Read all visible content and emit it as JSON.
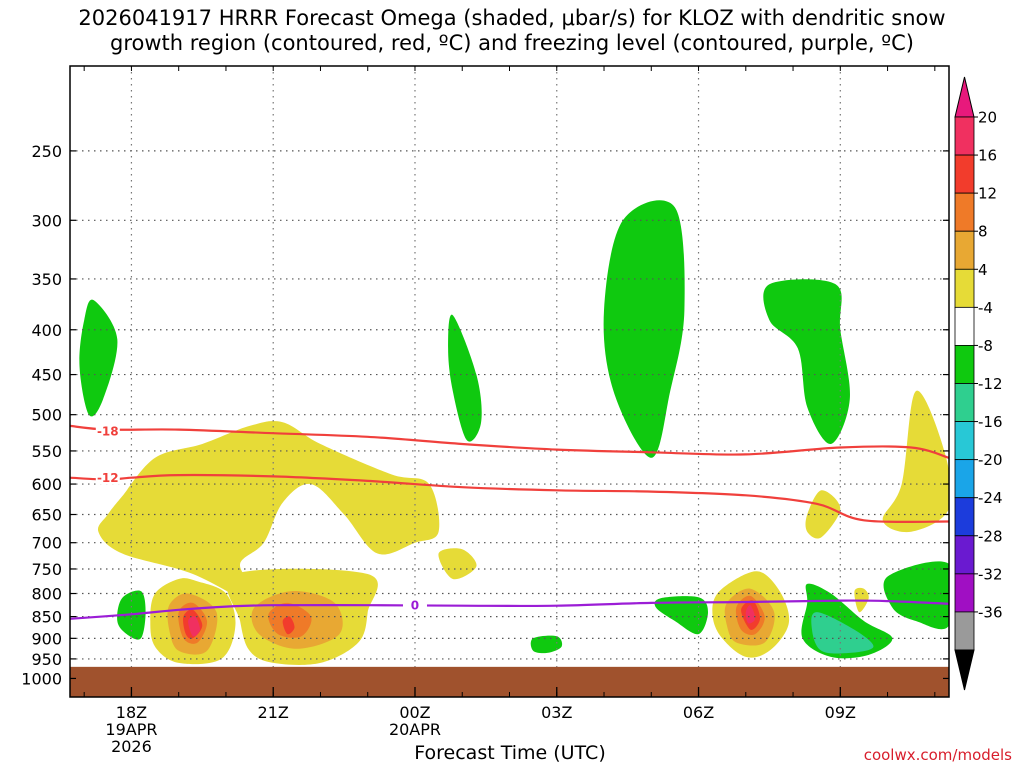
{
  "title": {
    "line1": "2026041917 HRRR Forecast Omega (shaded, μbar/s) for KLOZ with dendritic snow",
    "line2": "growth region (contoured, red, ºC) and freezing level (contoured, purple, ºC)"
  },
  "credit": "coolwx.com/models",
  "chart_data": {
    "type": "time-height cross section",
    "title": "2026041917 HRRR Forecast Omega (shaded, μbar/s) for KLOZ with dendritic snow growth region (contoured, red, ºC) and freezing level (contoured, purple, ºC)",
    "xlabel": "Forecast Time (UTC)",
    "ylabel": "",
    "x_range_hours_since_init": [
      -0.3,
      18.3
    ],
    "y_axis": {
      "scale": "log-pressure",
      "range_hPa": [
        1050,
        200
      ],
      "inverted": true
    },
    "y_ticks": [
      250,
      300,
      350,
      400,
      450,
      500,
      550,
      600,
      650,
      700,
      750,
      800,
      850,
      900,
      950,
      1000
    ],
    "x_ticks": [
      {
        "hour": 1,
        "labels": [
          "18Z",
          "19APR",
          "2026"
        ]
      },
      {
        "hour": 4,
        "labels": [
          "21Z"
        ]
      },
      {
        "hour": 7,
        "labels": [
          "00Z",
          "20APR"
        ]
      },
      {
        "hour": 10,
        "labels": [
          "03Z"
        ]
      },
      {
        "hour": 13,
        "labels": [
          "06Z"
        ]
      },
      {
        "hour": 16,
        "labels": [
          "09Z"
        ]
      }
    ],
    "grid": true,
    "ground_hPa": 970,
    "colorbar": {
      "labels": [
        "20",
        "16",
        "12",
        "8",
        "4",
        "-4",
        "-8",
        "-12",
        "-16",
        "-20",
        "-24",
        "-28",
        "-32",
        "-36"
      ],
      "colors": [
        "#f03060",
        "#f23c2c",
        "#ef7a28",
        "#e8a833",
        "#e6db37",
        "#ffffff",
        "#0fc90f",
        "#2fcf8f",
        "#28c8d6",
        "#1aa5e8",
        "#1c3cdc",
        "#6a1ad0",
        "#a00fc3",
        "#9a9a9a",
        "#000000"
      ],
      "top_triangle_color": "#e8197c",
      "bottom_triangle_color": "#000000"
    },
    "omega_regions": [
      {
        "level": "-8",
        "color": "#0fc90f",
        "pts": [
          [
            0.2,
            370
          ],
          [
            0.7,
            410
          ],
          [
            0.4,
            480
          ],
          [
            0.1,
            500
          ],
          [
            -0.1,
            440
          ],
          [
            0,
            390
          ]
        ]
      },
      {
        "level": "-8",
        "color": "#0fc90f",
        "pts": [
          [
            7.8,
            385
          ],
          [
            8.3,
            450
          ],
          [
            8.4,
            510
          ],
          [
            8.1,
            535
          ],
          [
            7.8,
            470
          ],
          [
            7.7,
            420
          ]
        ]
      },
      {
        "level": "-8",
        "color": "#0fc90f",
        "pts": [
          [
            11.4,
            300
          ],
          [
            12.5,
            290
          ],
          [
            12.7,
            380
          ],
          [
            12.4,
            470
          ],
          [
            12,
            560
          ],
          [
            11.2,
            470
          ],
          [
            11,
            380
          ]
        ]
      },
      {
        "level": "-8",
        "color": "#0fc90f",
        "pts": [
          [
            14.5,
            355
          ],
          [
            15.9,
            355
          ],
          [
            16,
            400
          ],
          [
            16.2,
            480
          ],
          [
            15.8,
            540
          ],
          [
            15.3,
            490
          ],
          [
            15.1,
            420
          ],
          [
            14.5,
            390
          ]
        ]
      },
      {
        "level": "-8",
        "color": "#0fc90f",
        "pts": [
          [
            0.8,
            810
          ],
          [
            1.2,
            795
          ],
          [
            1.3,
            840
          ],
          [
            1.2,
            900
          ],
          [
            0.9,
            890
          ],
          [
            0.7,
            860
          ]
        ]
      },
      {
        "level": "-8",
        "color": "#0fc90f",
        "pts": [
          [
            9.5,
            900
          ],
          [
            10,
            895
          ],
          [
            10.1,
            920
          ],
          [
            9.8,
            935
          ],
          [
            9.5,
            930
          ]
        ]
      },
      {
        "level": "-8",
        "color": "#0fc90f",
        "pts": [
          [
            12.2,
            810
          ],
          [
            13,
            808
          ],
          [
            13.2,
            840
          ],
          [
            13,
            890
          ],
          [
            12.5,
            860
          ],
          [
            12.1,
            830
          ]
        ]
      },
      {
        "level": "-8",
        "color": "#0fc90f",
        "pts": [
          [
            15.3,
            780
          ],
          [
            15.8,
            800
          ],
          [
            16.5,
            860
          ],
          [
            17.1,
            900
          ],
          [
            16.6,
            940
          ],
          [
            15.8,
            945
          ],
          [
            15.2,
            900
          ],
          [
            15.3,
            820
          ]
        ]
      },
      {
        "level": "-8",
        "color": "#0fc90f",
        "pts": [
          [
            17,
            765
          ],
          [
            18.3,
            740
          ],
          [
            18.3,
            870
          ],
          [
            17.6,
            860
          ],
          [
            17.1,
            830
          ]
        ]
      },
      {
        "level": "-12",
        "color": "#2fcf8f",
        "pts": [
          [
            15.5,
            840
          ],
          [
            16.3,
            880
          ],
          [
            16.7,
            920
          ],
          [
            16.2,
            935
          ],
          [
            15.6,
            930
          ],
          [
            15.4,
            880
          ]
        ]
      },
      {
        "level": "4",
        "color": "#e6db37",
        "pts": [
          [
            0.8,
            620
          ],
          [
            1.5,
            560
          ],
          [
            2.5,
            540
          ],
          [
            3.5,
            515
          ],
          [
            4.2,
            510
          ],
          [
            5,
            540
          ],
          [
            6.5,
            585
          ],
          [
            7.3,
            600
          ],
          [
            7.5,
            680
          ],
          [
            7,
            700
          ],
          [
            6.2,
            720
          ],
          [
            5.5,
            650
          ],
          [
            4.8,
            600
          ],
          [
            4.2,
            630
          ],
          [
            3.8,
            700
          ],
          [
            3.3,
            740
          ],
          [
            3.6,
            790
          ],
          [
            3.7,
            830
          ],
          [
            2.3,
            760
          ],
          [
            0.8,
            720
          ],
          [
            0.3,
            680
          ],
          [
            0.5,
            650
          ]
        ]
      },
      {
        "level": "4",
        "color": "#e6db37",
        "pts": [
          [
            1.5,
            800
          ],
          [
            2,
            770
          ],
          [
            2.4,
            775
          ],
          [
            3,
            800
          ],
          [
            3.2,
            870
          ],
          [
            2.9,
            950
          ],
          [
            2,
            960
          ],
          [
            1.5,
            920
          ],
          [
            1.4,
            860
          ]
        ]
      },
      {
        "level": "4",
        "color": "#e6db37",
        "pts": [
          [
            3.2,
            760
          ],
          [
            6,
            760
          ],
          [
            6,
            840
          ],
          [
            5.8,
            910
          ],
          [
            5,
            960
          ],
          [
            4,
            960
          ],
          [
            3.5,
            930
          ],
          [
            3.3,
            860
          ]
        ]
      },
      {
        "level": "4",
        "color": "#e6db37",
        "pts": [
          [
            7.5,
            720
          ],
          [
            8,
            712
          ],
          [
            8.3,
            745
          ],
          [
            7.8,
            770
          ]
        ]
      },
      {
        "level": "4",
        "color": "#e6db37",
        "pts": [
          [
            13.4,
            800
          ],
          [
            14,
            760
          ],
          [
            14.4,
            760
          ],
          [
            14.8,
            810
          ],
          [
            14.9,
            870
          ],
          [
            14.5,
            930
          ],
          [
            14,
            945
          ],
          [
            13.5,
            900
          ],
          [
            13.3,
            850
          ]
        ]
      },
      {
        "level": "4",
        "color": "#e6db37",
        "pts": [
          [
            15.3,
            650
          ],
          [
            15.6,
            610
          ],
          [
            16,
            640
          ],
          [
            15.6,
            690
          ],
          [
            15.3,
            680
          ]
        ]
      },
      {
        "level": "4",
        "color": "#e6db37",
        "pts": [
          [
            16.3,
            795
          ],
          [
            16.5,
            790
          ],
          [
            16.6,
            810
          ],
          [
            16.4,
            840
          ]
        ]
      },
      {
        "level": "4",
        "color": "#e6db37",
        "pts": [
          [
            17.3,
            600
          ],
          [
            17.6,
            470
          ],
          [
            18.2,
            550
          ],
          [
            18.3,
            640
          ],
          [
            17.5,
            680
          ],
          [
            16.9,
            660
          ]
        ]
      },
      {
        "level": "8",
        "color": "#e8a833",
        "pts": [
          [
            1.8,
            825
          ],
          [
            2.2,
            800
          ],
          [
            2.8,
            840
          ],
          [
            2.6,
            930
          ],
          [
            2,
            930
          ],
          [
            1.8,
            880
          ]
        ]
      },
      {
        "level": "8",
        "color": "#e8a833",
        "pts": [
          [
            3.6,
            830
          ],
          [
            4.4,
            795
          ],
          [
            5.3,
            820
          ],
          [
            5.4,
            890
          ],
          [
            4.5,
            925
          ],
          [
            3.7,
            890
          ]
        ]
      },
      {
        "level": "8",
        "color": "#e8a833",
        "pts": [
          [
            13.6,
            820
          ],
          [
            14.1,
            790
          ],
          [
            14.6,
            840
          ],
          [
            14.4,
            910
          ],
          [
            13.8,
            910
          ],
          [
            13.6,
            870
          ]
        ]
      },
      {
        "level": "12",
        "color": "#ef7a28",
        "pts": [
          [
            2,
            840
          ],
          [
            2.3,
            820
          ],
          [
            2.6,
            860
          ],
          [
            2.4,
            910
          ],
          [
            2.1,
            900
          ]
        ]
      },
      {
        "level": "12",
        "color": "#ef7a28",
        "pts": [
          [
            3.9,
            845
          ],
          [
            4.3,
            820
          ],
          [
            4.8,
            850
          ],
          [
            4.6,
            895
          ],
          [
            4.1,
            890
          ]
        ]
      },
      {
        "level": "12",
        "color": "#ef7a28",
        "pts": [
          [
            13.8,
            830
          ],
          [
            14.1,
            805
          ],
          [
            14.4,
            850
          ],
          [
            14.2,
            890
          ],
          [
            13.9,
            880
          ]
        ]
      },
      {
        "level": "16",
        "color": "#f23c2c",
        "pts": [
          [
            2.1,
            850
          ],
          [
            2.3,
            835
          ],
          [
            2.5,
            870
          ],
          [
            2.3,
            900
          ],
          [
            2.15,
            890
          ]
        ]
      },
      {
        "level": "16",
        "color": "#f23c2c",
        "pts": [
          [
            4.2,
            860
          ],
          [
            4.35,
            850
          ],
          [
            4.45,
            875
          ],
          [
            4.3,
            890
          ]
        ]
      },
      {
        "level": "16",
        "color": "#f23c2c",
        "pts": [
          [
            13.9,
            835
          ],
          [
            14.15,
            815
          ],
          [
            14.3,
            855
          ],
          [
            14.1,
            880
          ]
        ]
      },
      {
        "level": "20",
        "color": "#f03060",
        "pts": [
          [
            2.2,
            860
          ],
          [
            2.35,
            850
          ],
          [
            2.45,
            880
          ],
          [
            2.3,
            895
          ]
        ]
      },
      {
        "level": "20",
        "color": "#f03060",
        "pts": [
          [
            14,
            840
          ],
          [
            14.1,
            825
          ],
          [
            14.2,
            855
          ],
          [
            14.05,
            865
          ]
        ]
      }
    ],
    "contours": [
      {
        "name": "-18 ºC",
        "label": "-18",
        "color": "#f0403c",
        "label_at": [
          0.5,
          522
        ],
        "pts": [
          [
            -0.3,
            515
          ],
          [
            0.5,
            520
          ],
          [
            2,
            520
          ],
          [
            4,
            525
          ],
          [
            6,
            530
          ],
          [
            8,
            540
          ],
          [
            10,
            548
          ],
          [
            12,
            552
          ],
          [
            14,
            555
          ],
          [
            16,
            545
          ],
          [
            17.5,
            545
          ],
          [
            18.3,
            560
          ]
        ]
      },
      {
        "name": "-12 ºC",
        "label": "-12",
        "color": "#f0403c",
        "label_at": [
          0.5,
          590
        ],
        "pts": [
          [
            -0.3,
            590
          ],
          [
            0.5,
            593
          ],
          [
            1,
            590
          ],
          [
            2,
            586
          ],
          [
            4,
            588
          ],
          [
            6,
            595
          ],
          [
            8,
            605
          ],
          [
            10,
            610
          ],
          [
            12,
            612
          ],
          [
            14,
            618
          ],
          [
            15.5,
            632
          ],
          [
            16.5,
            660
          ],
          [
            18.3,
            662
          ]
        ]
      },
      {
        "name": "0 ºC",
        "label": "0",
        "color": "#9b1dd6",
        "label_at": [
          7,
          825
        ],
        "pts": [
          [
            -0.3,
            855
          ],
          [
            1,
            845
          ],
          [
            2,
            835
          ],
          [
            3,
            828
          ],
          [
            4,
            825
          ],
          [
            6,
            825
          ],
          [
            8,
            826
          ],
          [
            10,
            826
          ],
          [
            12,
            820
          ],
          [
            14,
            818
          ],
          [
            16,
            815
          ],
          [
            17,
            816
          ],
          [
            18.3,
            822
          ]
        ]
      }
    ]
  }
}
